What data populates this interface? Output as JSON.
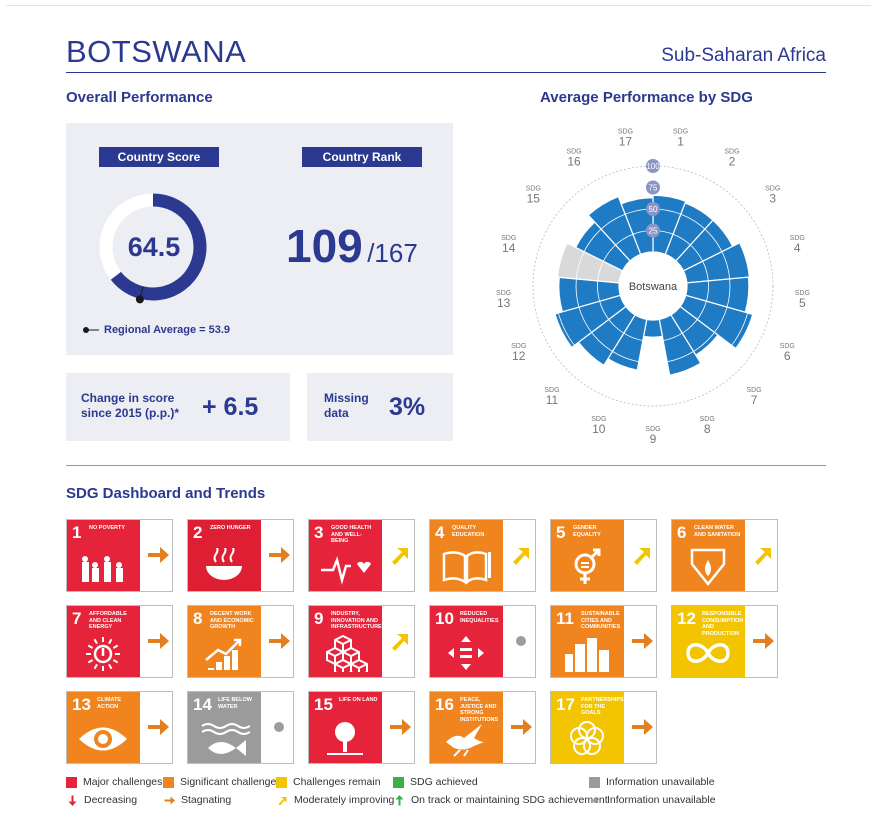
{
  "header": {
    "country": "BOTSWANA",
    "region": "Sub-Saharan Africa"
  },
  "overall": {
    "title": "Overall Performance",
    "score_label": "Country Score",
    "score": "64.5",
    "score_value": 64.5,
    "regional_avg_label": "Regional Average = 53.9",
    "regional_avg_value": 53.9,
    "rank_label": "Country Rank",
    "rank": "109",
    "rank_total": "/167",
    "change_label_1": "Change in score",
    "change_label_2": "since 2015 (p.p.)*",
    "change_value": "+ 6.5",
    "missing_label_1": "Missing",
    "missing_label_2": "data",
    "missing_value": "3%"
  },
  "radar": {
    "title": "Average Performance by SDG",
    "center_label": "Botswana",
    "scale_ticks": [
      "100",
      "75",
      "50",
      "25"
    ],
    "goal_prefix": "SDG",
    "goal_numbers": [
      "1",
      "2",
      "3",
      "4",
      "5",
      "6",
      "7",
      "8",
      "9",
      "10",
      "11",
      "12",
      "13",
      "14",
      "15",
      "16",
      "17"
    ]
  },
  "chart_data": {
    "type": "polar-bar",
    "title": "Average Performance by SDG",
    "categories": [
      "SDG 1",
      "SDG 2",
      "SDG 3",
      "SDG 4",
      "SDG 5",
      "SDG 6",
      "SDG 7",
      "SDG 8",
      "SDG 9",
      "SDG 10",
      "SDG 11",
      "SDG 12",
      "SDG 13",
      "SDG 14",
      "SDG 15",
      "SDG 16",
      "SDG 17"
    ],
    "values": [
      66,
      64,
      64,
      73,
      72,
      81,
      55,
      66,
      20,
      60,
      69,
      79,
      70,
      73,
      61,
      72,
      63
    ],
    "unavailable": [
      false,
      false,
      false,
      false,
      false,
      false,
      false,
      false,
      false,
      false,
      false,
      false,
      false,
      true,
      false,
      false,
      false
    ],
    "rlim": [
      0,
      100
    ],
    "colors": {
      "bar": "#1f7bc4",
      "unavailable": "#d9d9d9"
    }
  },
  "dashboard": {
    "title": "SDG Dashboard and Trends",
    "goals": [
      {
        "num": "1",
        "title": "No Poverty",
        "color": "#e5243b",
        "icon": "people-icon",
        "trend": "stagnating",
        "tcolor": "#e47f1f"
      },
      {
        "num": "2",
        "title": "Zero Hunger",
        "color": "#dd1e33",
        "icon": "bowl-icon",
        "trend": "stagnating",
        "tcolor": "#e47f1f"
      },
      {
        "num": "3",
        "title": "Good Health and Well-Being",
        "color": "#e5243b",
        "icon": "heartbeat-icon",
        "trend": "moderately-improving",
        "tcolor": "#f2c500"
      },
      {
        "num": "4",
        "title": "Quality Education",
        "color": "#f0841e",
        "icon": "book-icon",
        "trend": "moderately-improving",
        "tcolor": "#f2c500"
      },
      {
        "num": "5",
        "title": "Gender Equality",
        "color": "#f0841e",
        "icon": "gender-icon",
        "trend": "moderately-improving",
        "tcolor": "#f2c500"
      },
      {
        "num": "6",
        "title": "Clean Water and Sanitation",
        "color": "#f0841e",
        "icon": "water-drop-icon",
        "trend": "moderately-improving",
        "tcolor": "#f2c500"
      },
      {
        "num": "7",
        "title": "Affordable and Clean Energy",
        "color": "#e5243b",
        "icon": "sun-power-icon",
        "trend": "stagnating",
        "tcolor": "#e47f1f"
      },
      {
        "num": "8",
        "title": "Decent Work and Economic Growth",
        "color": "#f0841e",
        "icon": "growth-chart-icon",
        "trend": "stagnating",
        "tcolor": "#e47f1f"
      },
      {
        "num": "9",
        "title": "Industry, Innovation and Infrastructure",
        "color": "#e5243b",
        "icon": "cubes-icon",
        "trend": "moderately-improving",
        "tcolor": "#f2c500"
      },
      {
        "num": "10",
        "title": "Reduced Inequalities",
        "color": "#e5243b",
        "icon": "equality-icon",
        "trend": "information-unavailable",
        "tcolor": "#9d9d9d"
      },
      {
        "num": "11",
        "title": "Sustainable Cities and Communities",
        "color": "#f0841e",
        "icon": "city-icon",
        "trend": "stagnating",
        "tcolor": "#e47f1f"
      },
      {
        "num": "12",
        "title": "Responsible Consumption and Production",
        "color": "#f2c500",
        "icon": "infinity-icon",
        "trend": "stagnating",
        "tcolor": "#e47f1f"
      },
      {
        "num": "13",
        "title": "Climate Action",
        "color": "#f0841e",
        "icon": "eye-globe-icon",
        "trend": "stagnating",
        "tcolor": "#e47f1f"
      },
      {
        "num": "14",
        "title": "Life Below Water",
        "color": "#9b9b9b",
        "icon": "fish-icon",
        "trend": "information-unavailable",
        "tcolor": "#9d9d9d"
      },
      {
        "num": "15",
        "title": "Life On Land",
        "color": "#e5243b",
        "icon": "tree-icon",
        "trend": "stagnating",
        "tcolor": "#e47f1f"
      },
      {
        "num": "16",
        "title": "Peace, Justice and Strong Institutions",
        "color": "#f0841e",
        "icon": "dove-icon",
        "trend": "stagnating",
        "tcolor": "#e47f1f"
      },
      {
        "num": "17",
        "title": "Partnerships for the Goals",
        "color": "#f2c500",
        "icon": "rings-icon",
        "trend": "stagnating",
        "tcolor": "#e47f1f"
      }
    ]
  },
  "legend": {
    "row1": [
      {
        "label": "Major challenges",
        "color": "#e5243b"
      },
      {
        "label": "Significant challenges",
        "color": "#f0841e"
      },
      {
        "label": "Challenges remain",
        "color": "#f2c500"
      },
      {
        "label": "SDG achieved",
        "color": "#3eb049"
      },
      {
        "label": "Information unavailable",
        "color": "#9b9b9b"
      }
    ],
    "row2": [
      {
        "label": "Decreasing",
        "icon": "arrow-down-icon",
        "color": "#e5243b"
      },
      {
        "label": "Stagnating",
        "icon": "arrow-right-icon",
        "color": "#e47f1f"
      },
      {
        "label": "Moderately improving",
        "icon": "arrow-up-right-icon",
        "color": "#f2c500"
      },
      {
        "label": "On track or maintaining SDG achievement",
        "icon": "arrow-up-icon",
        "color": "#3eb049"
      },
      {
        "label": "Information unavailable",
        "icon": "dot-icon",
        "color": "#9b9b9b"
      }
    ]
  }
}
